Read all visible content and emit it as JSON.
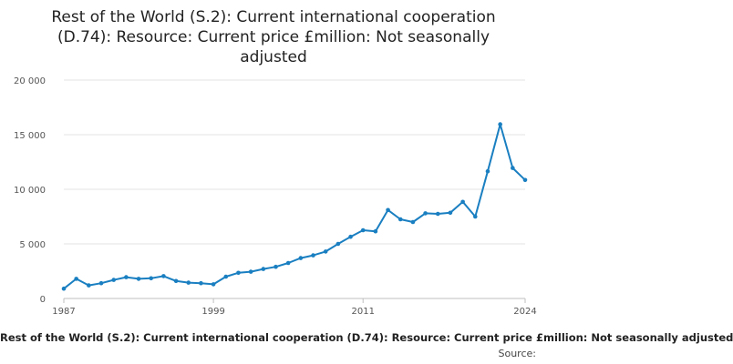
{
  "chart_data": {
    "type": "line",
    "title_lines": [
      "Rest of the World (S.2): Current international cooperation",
      "(D.74): Resource: Current price £million: Not seasonally",
      "adjusted"
    ],
    "x": [
      1987,
      1988,
      1989,
      1990,
      1991,
      1992,
      1993,
      1994,
      1995,
      1996,
      1997,
      1998,
      1999,
      2000,
      2001,
      2002,
      2003,
      2004,
      2005,
      2006,
      2007,
      2008,
      2009,
      2010,
      2011,
      2012,
      2013,
      2014,
      2015,
      2016,
      2017,
      2018,
      2019,
      2020,
      2021,
      2022,
      2023,
      2024
    ],
    "series": [
      {
        "name": "Rest of the World (S.2): Current international cooperation (D.74): Resource: Current price £million: Not seasonally adjusted",
        "color": "#1a7fc1",
        "values": [
          900,
          1800,
          1200,
          1400,
          1700,
          1950,
          1800,
          1850,
          2050,
          1600,
          1450,
          1400,
          1300,
          2000,
          2350,
          2450,
          2700,
          2900,
          3250,
          3700,
          3950,
          4300,
          5000,
          5650,
          6250,
          6150,
          8100,
          7250,
          7000,
          7800,
          7750,
          7850,
          8850,
          7500,
          11650,
          15950,
          11950,
          10850
        ]
      }
    ],
    "xlim": [
      1987,
      2024
    ],
    "ylim": [
      0,
      20000
    ],
    "yticks": [
      0,
      5000,
      10000,
      15000,
      20000
    ],
    "ytick_labels": [
      "0",
      "5 000",
      "10 000",
      "15 000",
      "20 000"
    ],
    "xticks": [
      1987,
      1999,
      2011,
      2024
    ],
    "xtick_labels": [
      "1987",
      "1999",
      "2011",
      "2024"
    ],
    "xlabel": "Rest of the World (S.2): Current international cooperation (D.74): Resource: Current price £million: Not seasonally adjusted",
    "ylabel": "",
    "grid": true,
    "source_label": "Source:"
  }
}
